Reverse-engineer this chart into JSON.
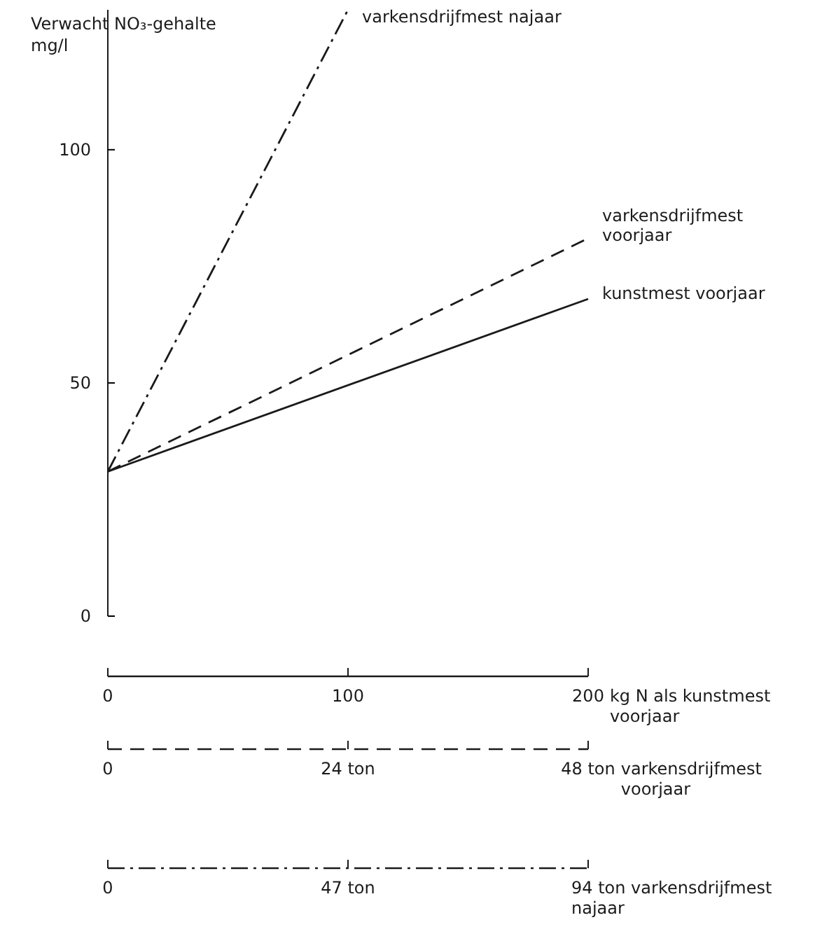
{
  "chart_data": {
    "type": "line",
    "ylabel": "Verwacht NO₃-gehalte mg/l",
    "ylim": [
      0,
      130
    ],
    "yticks": [
      0,
      50,
      100
    ],
    "xlim": [
      0,
      200
    ],
    "xticks": [
      0,
      100,
      200
    ],
    "xlabel": "kg N als kunstmest voorjaar",
    "x2lim": [
      0,
      48
    ],
    "x2ticks": [
      0,
      {
        "value": 24,
        "label": "24 ton"
      },
      {
        "value": 48,
        "label": "48 ton"
      }
    ],
    "x2label": "varkensdrijfmest voorjaar",
    "annotations": [
      "0",
      "47 ton",
      "94 ton varkensdrijfmest najaar"
    ],
    "grid": false,
    "marker": "none",
    "series": [
      {
        "name": "varkensdrijfmest najaar",
        "color": "#1a1a1a",
        "line_style": "dashdot",
        "x": [
          0,
          100
        ],
        "values": [
          31,
          130
        ]
      },
      {
        "name": "varkensdrijfmest voorjaar",
        "color": "#1a1a1a",
        "line_style": "dashed",
        "x": [
          0,
          200
        ],
        "values": [
          31,
          81
        ]
      },
      {
        "name": "kunstmest voorjaar",
        "color": "#1a1a1a",
        "line_style": "solid",
        "x": [
          0,
          200
        ],
        "values": [
          31,
          68
        ]
      }
    ]
  }
}
